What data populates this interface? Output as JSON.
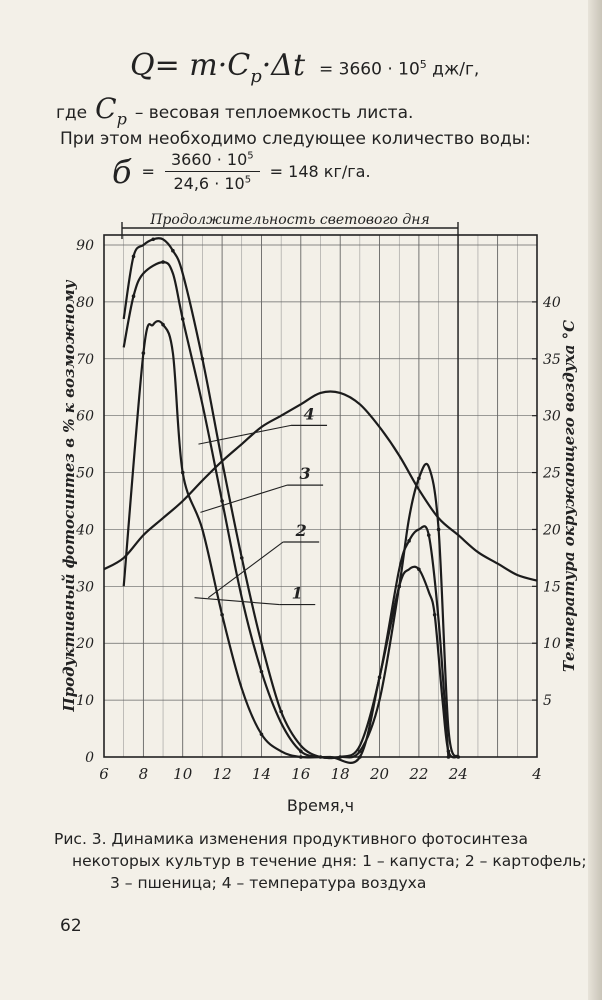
{
  "formula_top": {
    "left": "Q= m·C",
    "sub": "p",
    "tail": "·Δt",
    "rhs_pre": "= 3660 · 10",
    "rhs_exp": "5",
    "rhs_unit": " дж/г,"
  },
  "where_line": {
    "prefix": "где",
    "symbol": "C",
    "symbol_sub": "p",
    "text": "– весовая теплоемкость листа."
  },
  "intro_line": "При этом необходимо следующее количество воды:",
  "formula_water": {
    "symbol": "б",
    "eq": "=",
    "num": "3660 · 10",
    "num_exp": "5",
    "den": "24,6 · 10",
    "den_exp": "5",
    "result": "= 148 кг/га."
  },
  "chart_data": {
    "type": "line",
    "title": "Продолжительность светового дня",
    "xlabel": "Время,ч",
    "ylabel_left": "Продуктивный фотосинтез в % к возможному",
    "ylabel_right": "Температура окружающего воздуха °С",
    "x_ticks": [
      "6",
      "8",
      "10",
      "12",
      "14",
      "16",
      "18",
      "20",
      "22",
      "24",
      "4"
    ],
    "y_left_ticks": [
      "0",
      "10",
      "20",
      "30",
      "40",
      "50",
      "60",
      "70",
      "80",
      "90"
    ],
    "y_right_ticks": [
      "5",
      "10",
      "15",
      "20",
      "25",
      "30",
      "35",
      "40"
    ],
    "xlim": [
      6,
      28
    ],
    "ylim_left": [
      0,
      90
    ],
    "ylim_right": [
      0,
      45
    ],
    "grid": true,
    "series": [
      {
        "name": "1",
        "x": [
          7,
          8,
          8.5,
          9,
          9.5,
          10,
          11,
          12,
          13,
          14,
          15,
          16,
          17.5,
          19,
          20,
          21,
          21.5,
          22,
          22.5,
          22.8,
          23.2,
          23.5,
          24
        ],
        "y": [
          30,
          71,
          76,
          76,
          71,
          50,
          40,
          25,
          12,
          4,
          1,
          0,
          0,
          0,
          14,
          30,
          33,
          33,
          29,
          25,
          10,
          1,
          0
        ]
      },
      {
        "name": "2",
        "x": [
          7,
          7.5,
          8,
          9,
          9.5,
          10,
          11,
          12,
          13,
          14,
          15,
          16,
          17,
          18,
          19,
          20,
          21,
          21.5,
          22,
          22.5,
          23,
          23.5
        ],
        "y": [
          72,
          81,
          85,
          87,
          85,
          77,
          62,
          45,
          28,
          15,
          6,
          1,
          0,
          0,
          2,
          14,
          33,
          38,
          40,
          39,
          24,
          0
        ]
      },
      {
        "name": "3",
        "x": [
          7,
          7.5,
          8,
          8.5,
          9,
          9.5,
          10,
          11,
          12,
          13,
          14,
          15,
          16,
          17,
          18,
          19,
          20,
          21,
          21.5,
          22,
          22.5,
          23,
          23.5,
          24
        ],
        "y": [
          77,
          88,
          90,
          91,
          91,
          89,
          85,
          70,
          52,
          35,
          20,
          8,
          2,
          0,
          0,
          1,
          10,
          30,
          42,
          49,
          51,
          40,
          5,
          0
        ]
      },
      {
        "name": "4",
        "axis": "right",
        "x": [
          6,
          7,
          8,
          9,
          10,
          11,
          12,
          13,
          14,
          15,
          16,
          17,
          18,
          19,
          20,
          21,
          22,
          23,
          24,
          25,
          26,
          27,
          28
        ],
        "y": [
          16.5,
          17.5,
          19.5,
          21,
          22.5,
          24.3,
          26,
          27.5,
          29,
          30,
          31,
          32,
          32,
          31,
          29,
          26.5,
          23.5,
          21,
          19.5,
          18,
          17,
          16,
          15.5
        ]
      }
    ],
    "series_labels": [
      {
        "text": "4",
        "x": 15.3,
        "y": 59
      },
      {
        "text": "3",
        "x": 15.1,
        "y": 48.5
      },
      {
        "text": "2",
        "x": 14.9,
        "y": 38.5
      },
      {
        "text": "1",
        "x": 14.7,
        "y": 27.5
      }
    ]
  },
  "caption": {
    "line1": "Рис. 3. Динамика изменения продуктивного фотосинтеза",
    "line2": "некоторых культур в течение дня: 1 – капуста; 2 – картофель;",
    "line3": "3 – пшеница; 4 – температура воздуха"
  },
  "page_number": "62"
}
